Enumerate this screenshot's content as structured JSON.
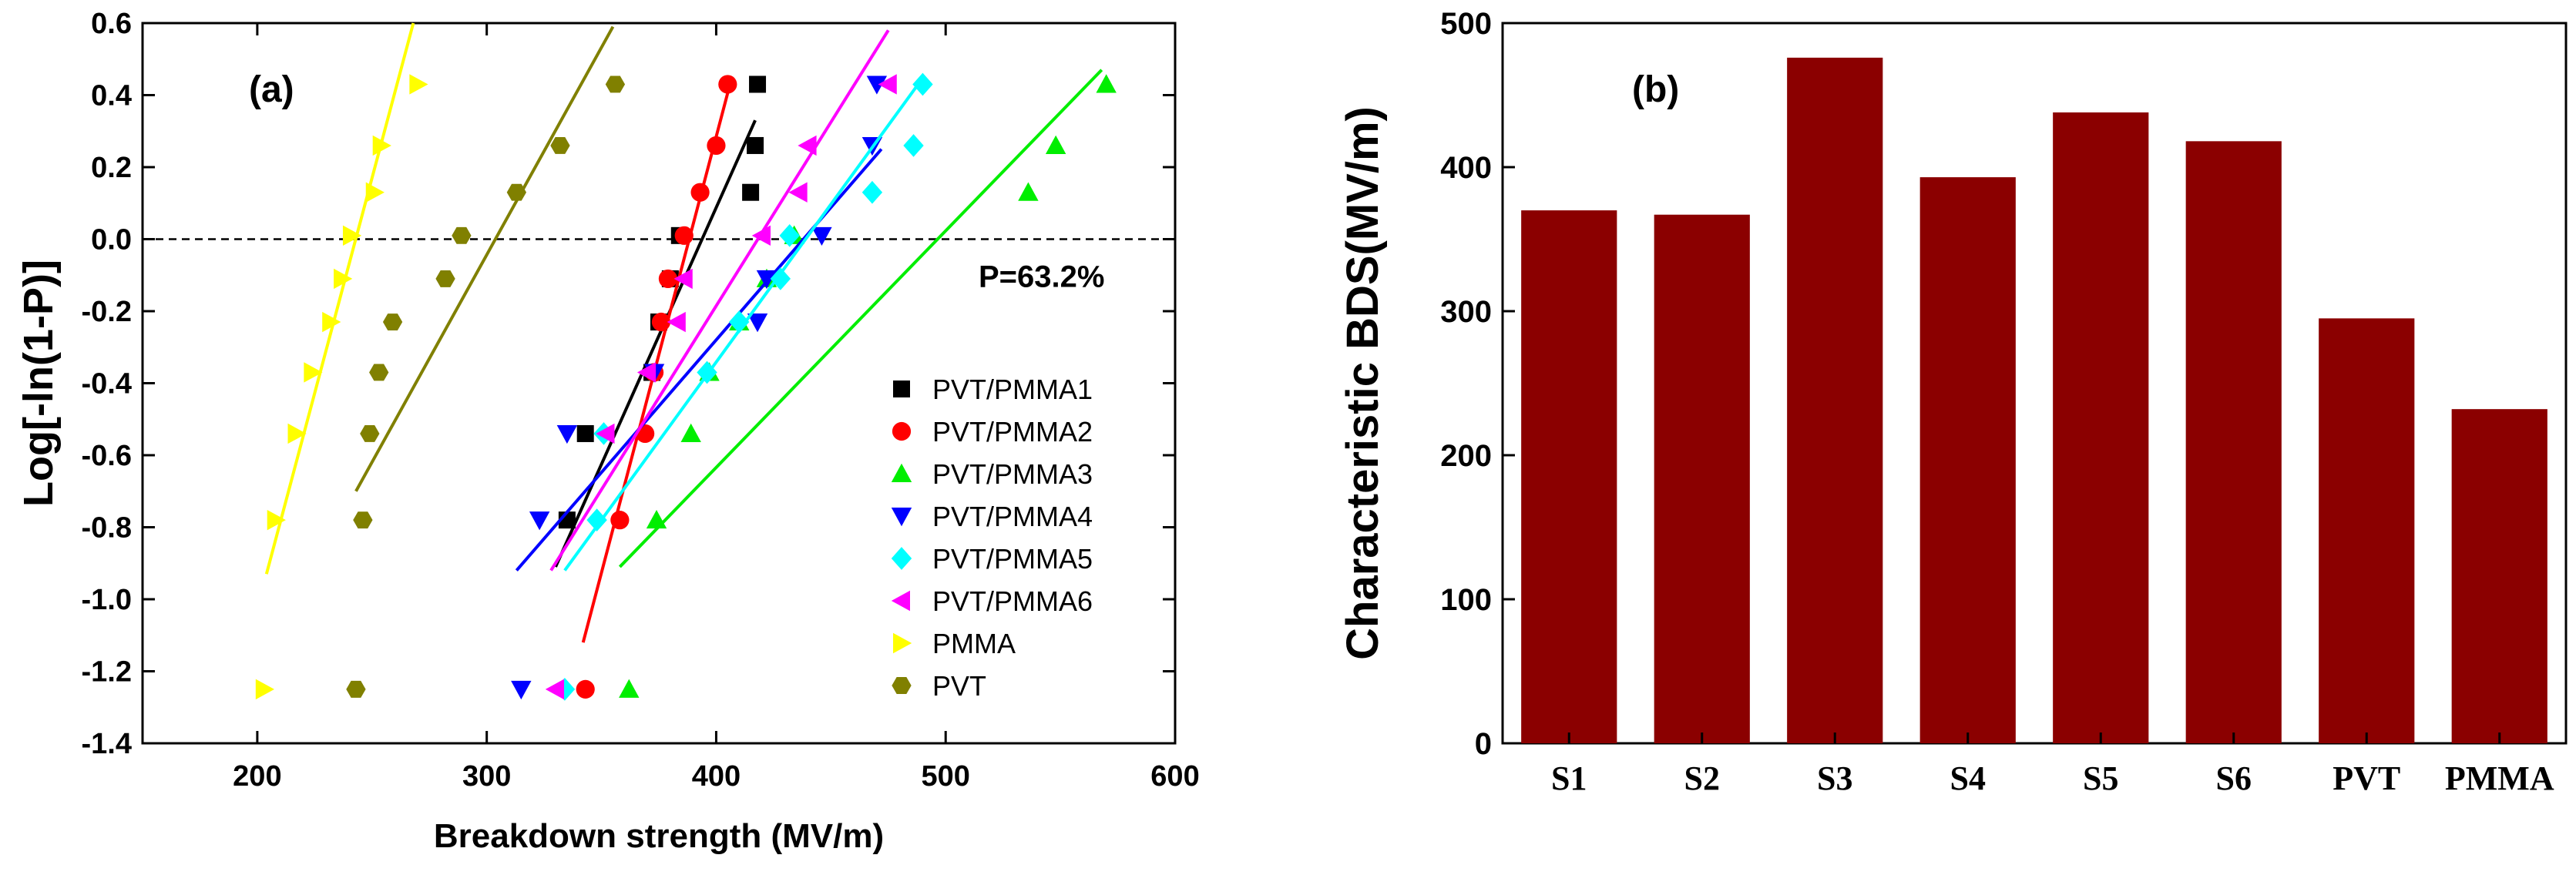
{
  "chart_data": [
    {
      "type": "scatter",
      "panel_label": "(a)",
      "xlabel": "Breakdown strength (MV/m)",
      "ylabel": "Log[-ln(1-P)]",
      "xlim": [
        150,
        600
      ],
      "ylim": [
        -1.4,
        0.6
      ],
      "xticks": [
        200,
        300,
        400,
        500,
        600
      ],
      "yticks": [
        -1.4,
        -1.2,
        -1.0,
        -0.8,
        -0.6,
        -0.4,
        -0.2,
        0.0,
        0.2,
        0.4,
        0.6
      ],
      "reference_line": {
        "y": 0.0,
        "style": "dashed",
        "label": "P=63.2%"
      },
      "legend_position": "right",
      "series": [
        {
          "name": "PVT/PMMA1",
          "marker": "square",
          "color": "#000000",
          "points": [
            [
              335,
              -0.78
            ],
            [
              343,
              -0.54
            ],
            [
              372,
              -0.37
            ],
            [
              375,
              -0.23
            ],
            [
              380,
              -0.11
            ],
            [
              384,
              0.01
            ],
            [
              415,
              0.13
            ],
            [
              417,
              0.26
            ],
            [
              418,
              0.43
            ]
          ],
          "fit": [
            [
              330,
              -0.91
            ],
            [
              417,
              0.33
            ]
          ]
        },
        {
          "name": "PVT/PMMA2",
          "marker": "circle",
          "color": "#ff0000",
          "points": [
            [
              343,
              -1.25
            ],
            [
              358,
              -0.78
            ],
            [
              369,
              -0.54
            ],
            [
              373,
              -0.37
            ],
            [
              376,
              -0.23
            ],
            [
              379,
              -0.11
            ],
            [
              386,
              0.01
            ],
            [
              393,
              0.13
            ],
            [
              400,
              0.26
            ],
            [
              405,
              0.43
            ]
          ],
          "fit": [
            [
              342,
              -1.12
            ],
            [
              406,
              0.43
            ]
          ]
        },
        {
          "name": "PVT/PMMA3",
          "marker": "triangle-up",
          "color": "#00ee00",
          "points": [
            [
              362,
              -1.25
            ],
            [
              374,
              -0.78
            ],
            [
              389,
              -0.54
            ],
            [
              397,
              -0.37
            ],
            [
              410,
              -0.23
            ],
            [
              422,
              -0.11
            ],
            [
              434,
              0.01
            ],
            [
              536,
              0.13
            ],
            [
              548,
              0.26
            ],
            [
              570,
              0.43
            ]
          ],
          "fit": [
            [
              358,
              -0.91
            ],
            [
              568,
              0.47
            ]
          ]
        },
        {
          "name": "PVT/PMMA4",
          "marker": "triangle-down",
          "color": "#0000ff",
          "points": [
            [
              315,
              -1.25
            ],
            [
              323,
              -0.78
            ],
            [
              335,
              -0.54
            ],
            [
              373,
              -0.37
            ],
            [
              418,
              -0.23
            ],
            [
              422,
              -0.11
            ],
            [
              446,
              0.01
            ],
            [
              468,
              0.26
            ],
            [
              470,
              0.43
            ]
          ],
          "fit": [
            [
              313,
              -0.92
            ],
            [
              472,
              0.25
            ]
          ]
        },
        {
          "name": "PVT/PMMA5",
          "marker": "diamond",
          "color": "#00ffff",
          "points": [
            [
              334,
              -1.25
            ],
            [
              348,
              -0.78
            ],
            [
              351,
              -0.54
            ],
            [
              396,
              -0.37
            ],
            [
              410,
              -0.23
            ],
            [
              428,
              -0.11
            ],
            [
              432,
              0.01
            ],
            [
              468,
              0.13
            ],
            [
              486,
              0.26
            ],
            [
              490,
              0.43
            ]
          ],
          "fit": [
            [
              334,
              -0.92
            ],
            [
              488,
              0.43
            ]
          ]
        },
        {
          "name": "PVT/PMMA6",
          "marker": "triangle-left",
          "color": "#ff00ff",
          "points": [
            [
              330,
              -1.25
            ],
            [
              352,
              -0.54
            ],
            [
              370,
              -0.37
            ],
            [
              383,
              -0.23
            ],
            [
              386,
              -0.11
            ],
            [
              420,
              0.01
            ],
            [
              436,
              0.13
            ],
            [
              440,
              0.26
            ],
            [
              475,
              0.43
            ]
          ],
          "fit": [
            [
              328,
              -0.92
            ],
            [
              475,
              0.58
            ]
          ]
        },
        {
          "name": "PMMA",
          "marker": "triangle-right",
          "color": "#ffff00",
          "points": [
            [
              203,
              -1.25
            ],
            [
              208,
              -0.78
            ],
            [
              217,
              -0.54
            ],
            [
              224,
              -0.37
            ],
            [
              232,
              -0.23
            ],
            [
              237,
              -0.11
            ],
            [
              241,
              0.01
            ],
            [
              251,
              0.13
            ],
            [
              254,
              0.26
            ],
            [
              270,
              0.43
            ]
          ],
          "fit": [
            [
              204,
              -0.93
            ],
            [
              268,
              0.6
            ]
          ]
        },
        {
          "name": "PVT",
          "marker": "hexagon",
          "color": "#808000",
          "points": [
            [
              243,
              -1.25
            ],
            [
              246,
              -0.78
            ],
            [
              249,
              -0.54
            ],
            [
              253,
              -0.37
            ],
            [
              259,
              -0.23
            ],
            [
              282,
              -0.11
            ],
            [
              289,
              0.01
            ],
            [
              313,
              0.13
            ],
            [
              332,
              0.26
            ],
            [
              356,
              0.43
            ]
          ],
          "fit": [
            [
              243,
              -0.7
            ],
            [
              355,
              0.59
            ]
          ]
        }
      ]
    },
    {
      "type": "bar",
      "panel_label": "(b)",
      "xlabel": "",
      "ylabel": "Characteristic BDS(MV/m)",
      "ylim": [
        0,
        500
      ],
      "yticks": [
        0,
        100,
        200,
        300,
        400,
        500
      ],
      "bar_color": "#8b0000",
      "categories": [
        "S1",
        "S2",
        "S3",
        "S4",
        "S5",
        "S6",
        "PVT",
        "PMMA"
      ],
      "values": [
        370,
        367,
        476,
        393,
        438,
        418,
        295,
        232
      ]
    }
  ]
}
